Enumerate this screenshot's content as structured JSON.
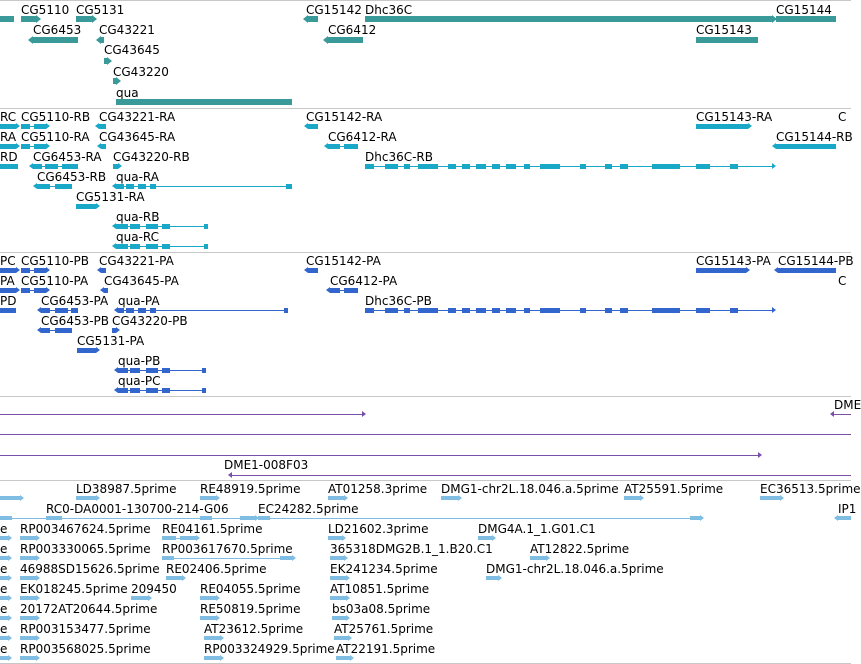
{
  "colors": {
    "gene": "#3a9a99",
    "transcript": "#1aa8c8",
    "protein": "#3366cc",
    "alignment": "#7a4fa8",
    "est": "#7fbde2",
    "divider": "#c8c8c8",
    "text": "#000000"
  },
  "tracks": {
    "genes": {
      "labels": [
        "CG5110",
        "CG5131",
        "CG6453",
        "CG43221",
        "CG43645",
        "CG43220",
        "qua",
        "CG15142",
        "Dhc36C",
        "CG6412",
        "CG15144",
        "CG15143"
      ]
    },
    "transcripts": {
      "labels": [
        "RC",
        "CG5110-RB",
        "CG43221-RA",
        "CG15142-RA",
        "CG15143-RA",
        "C",
        "RA",
        "CG5110-RA",
        "CG43645-RA",
        "CG6412-RA",
        "CG15144-RB",
        "RD",
        "CG6453-RA",
        "CG43220-RB",
        "Dhc36C-RB",
        "CG6453-RB",
        "qua-RA",
        "CG5131-RA",
        "qua-RB",
        "qua-RC"
      ]
    },
    "proteins": {
      "labels": [
        "PC",
        "CG5110-PB",
        "CG43221-PA",
        "CG15142-PA",
        "CG15143-PA",
        "CG15144-PB",
        "PA",
        "CG5110-PA",
        "CG43645-PA",
        "CG6412-PA",
        "C",
        "PD",
        "CG6453-PA",
        "qua-PA",
        "Dhc36C-PB",
        "CG6453-PB",
        "CG43220-PB",
        "CG5131-PA",
        "qua-PB",
        "qua-PC"
      ]
    },
    "alignments": {
      "labels": [
        "DME",
        "DME1-008F03"
      ]
    },
    "ests": {
      "labels": [
        "LD38987.5prime",
        "RE48919.5prime",
        "AT01258.3prime",
        "DMG1-chr2L.18.046.a.5prime",
        "AT25591.5prime",
        "EC36513.5prime",
        "RC0-DA0001-130700-214-G06",
        "EC24282.5prime",
        "IP1",
        "e",
        "RP003467624.5prime",
        "RE04161.5prime",
        "LD21602.3prime",
        "DMG4A.1_1.G01.C1",
        "e",
        "RP003330065.5prime",
        "RP003617670.5prime",
        "365318DMG2B.1_1.B20.C1",
        "AT12822.5prime",
        "e",
        "46988SD15626.5prime",
        "RE02406.5prime",
        "EK241234.5prime",
        "DMG1-chr2L.18.046.a.5prime",
        "e",
        "EK018245.5prime",
        "209450",
        "RE04055.5prime",
        "AT10851.5prime",
        "e",
        "20172AT20644.5prime",
        "RE50819.5prime",
        "bs03a08.5prime",
        "e",
        "RP003153477.5prime",
        "AT23612.5prime",
        "AT25761.5prime",
        "e",
        "RP003568025.5prime",
        "RP003324929.5prime",
        "AT22191.5prime"
      ]
    }
  }
}
